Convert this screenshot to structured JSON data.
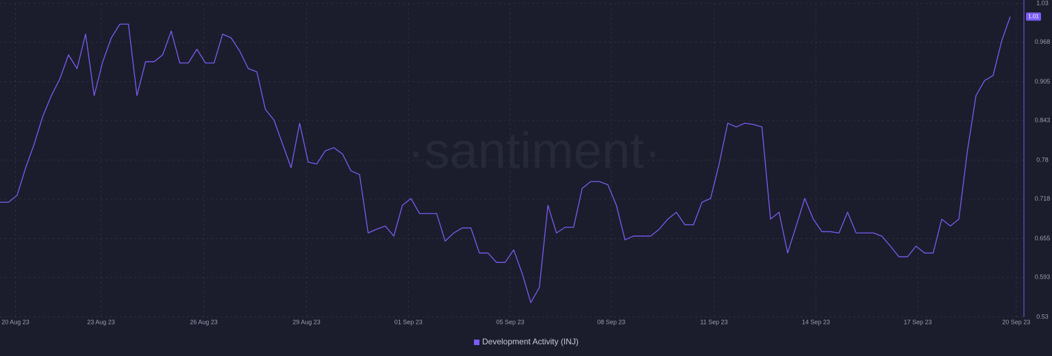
{
  "chart_data": {
    "type": "line",
    "watermark": "·santiment·",
    "series": [
      {
        "name": "Development Activity (INJ)",
        "color": "#7b5cf5",
        "last_value_label": "1.01",
        "values": [
          0.713,
          0.713,
          0.724,
          0.768,
          0.806,
          0.85,
          0.883,
          0.91,
          0.948,
          0.926,
          0.981,
          0.883,
          0.937,
          0.975,
          0.997,
          0.997,
          0.883,
          0.937,
          0.937,
          0.948,
          0.986,
          0.935,
          0.935,
          0.957,
          0.935,
          0.935,
          0.981,
          0.975,
          0.954,
          0.926,
          0.921,
          0.861,
          0.844,
          0.806,
          0.768,
          0.839,
          0.777,
          0.774,
          0.795,
          0.8,
          0.79,
          0.763,
          0.757,
          0.664,
          0.67,
          0.675,
          0.659,
          0.708,
          0.719,
          0.695,
          0.695,
          0.695,
          0.651,
          0.664,
          0.672,
          0.672,
          0.632,
          0.632,
          0.617,
          0.617,
          0.637,
          0.599,
          0.553,
          0.577,
          0.708,
          0.664,
          0.673,
          0.673,
          0.735,
          0.746,
          0.746,
          0.741,
          0.708,
          0.653,
          0.659,
          0.659,
          0.659,
          0.67,
          0.686,
          0.697,
          0.677,
          0.677,
          0.713,
          0.719,
          0.774,
          0.839,
          0.833,
          0.839,
          0.837,
          0.833,
          0.686,
          0.697,
          0.632,
          0.675,
          0.719,
          0.686,
          0.666,
          0.666,
          0.664,
          0.697,
          0.664,
          0.664,
          0.664,
          0.659,
          0.643,
          0.626,
          0.626,
          0.643,
          0.632,
          0.632,
          0.686,
          0.675,
          0.686,
          0.795,
          0.883,
          0.907,
          0.915,
          0.97,
          1.009
        ]
      }
    ],
    "xlim": [
      0,
      119.6
    ],
    "xticks": [
      {
        "value": 1.8,
        "label": "20 Aug 23"
      },
      {
        "value": 11.8,
        "label": "23 Aug 23"
      },
      {
        "value": 23.8,
        "label": "26 Aug 23"
      },
      {
        "value": 35.8,
        "label": "29 Aug 23"
      },
      {
        "value": 47.7,
        "label": "01 Sep 23"
      },
      {
        "value": 59.6,
        "label": "05 Sep 23"
      },
      {
        "value": 71.4,
        "label": "08 Sep 23"
      },
      {
        "value": 83.4,
        "label": "11 Sep 23"
      },
      {
        "value": 95.3,
        "label": "14 Sep 23"
      },
      {
        "value": 107.2,
        "label": "17 Sep 23"
      },
      {
        "value": 118.7,
        "label": "20 Sep 23"
      }
    ],
    "ylim": [
      0.53,
      1.03
    ],
    "yticks": [
      1.03,
      0.968,
      0.905,
      0.843,
      0.78,
      0.718,
      0.655,
      0.593,
      0.53
    ],
    "grid": true
  }
}
